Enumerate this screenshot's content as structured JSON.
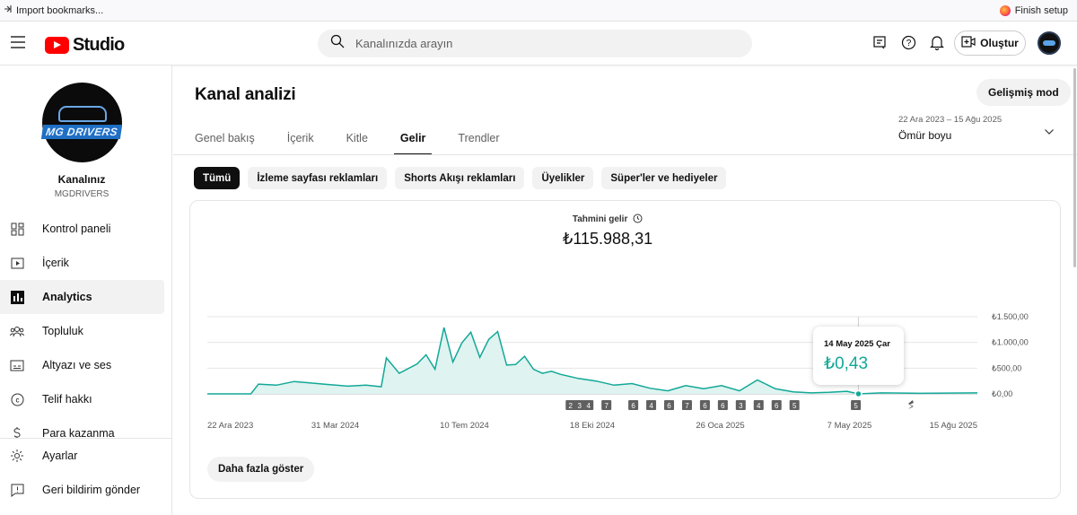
{
  "browser": {
    "import_bookmarks": "Import bookmarks...",
    "finish_setup": "Finish setup"
  },
  "topbar": {
    "logo_text": "Studio",
    "search_placeholder": "Kanalınızda arayın",
    "create_label": "Oluştur"
  },
  "sidebar": {
    "channel_title": "Kanalınız",
    "channel_handle": "MGDRIVERS",
    "avatar_text": "MG DRIVERS",
    "items": [
      {
        "label": "Kontrol paneli",
        "icon": "dashboard-icon"
      },
      {
        "label": "İçerik",
        "icon": "content-icon"
      },
      {
        "label": "Analytics",
        "icon": "analytics-icon",
        "active": true
      },
      {
        "label": "Topluluk",
        "icon": "community-icon"
      },
      {
        "label": "Altyazı ve ses",
        "icon": "subtitles-icon"
      },
      {
        "label": "Telif hakkı",
        "icon": "copyright-icon"
      },
      {
        "label": "Para kazanma",
        "icon": "monetization-icon"
      }
    ],
    "bottom_items": [
      {
        "label": "Ayarlar",
        "icon": "settings-icon"
      },
      {
        "label": "Geri bildirim gönder",
        "icon": "feedback-icon"
      }
    ]
  },
  "main": {
    "title": "Kanal analizi",
    "advanced_mode": "Gelişmiş mod",
    "tabs": [
      {
        "label": "Genel bakış"
      },
      {
        "label": "İçerik"
      },
      {
        "label": "Kitle"
      },
      {
        "label": "Gelir",
        "active": true
      },
      {
        "label": "Trendler"
      }
    ],
    "date_range": "22 Ara 2023 – 15 Ağu 2025",
    "date_period": "Ömür boyu",
    "chips": [
      {
        "label": "Tümü",
        "active": true
      },
      {
        "label": "İzleme sayfası reklamları"
      },
      {
        "label": "Shorts Akışı reklamları"
      },
      {
        "label": "Üyelikler"
      },
      {
        "label": "Süper'ler ve hediyeler"
      }
    ],
    "metric_label": "Tahmini gelir",
    "metric_value": "₺115.988,31",
    "show_more": "Daha fazla göster",
    "tooltip": {
      "date": "14 May 2025 Çar",
      "value": "₺0,43"
    }
  },
  "colors": {
    "accent": "#12a897",
    "fill": "#dff3f0",
    "youtube_red": "#ff0000"
  },
  "chart_data": {
    "type": "area",
    "title": "Tahmini gelir",
    "x_tick_labels": [
      "22 Ara 2023",
      "31 Mar 2024",
      "10 Tem 2024",
      "18 Eki 2024",
      "26 Oca 2025",
      "7 May 2025",
      "15 Ağu 2025"
    ],
    "y_tick_labels": [
      "₺0,00",
      "₺500,00",
      "₺1.000,00",
      "₺1.500,00"
    ],
    "ylim": [
      0,
      1500
    ],
    "x_start": "2023-12-22",
    "x_end": "2025-08-15",
    "series": [
      {
        "x": [
          "2023-12-22",
          "2024-01-25",
          "2024-01-31",
          "2024-02-14",
          "2024-02-28",
          "2024-03-13",
          "2024-03-27",
          "2024-04-10",
          "2024-04-24",
          "2024-05-06",
          "2024-05-10",
          "2024-05-20",
          "2024-06-03",
          "2024-06-10",
          "2024-06-17",
          "2024-06-24",
          "2024-07-01",
          "2024-07-08",
          "2024-07-15",
          "2024-07-22",
          "2024-07-29",
          "2024-08-05",
          "2024-08-12",
          "2024-08-19",
          "2024-08-26",
          "2024-09-02",
          "2024-09-09",
          "2024-09-16",
          "2024-09-23",
          "2024-10-07",
          "2024-10-21",
          "2024-11-04",
          "2024-11-18",
          "2024-12-02",
          "2024-12-16",
          "2024-12-30",
          "2025-01-13",
          "2025-01-27",
          "2025-02-10",
          "2025-02-24",
          "2025-03-10",
          "2025-03-24",
          "2025-04-07",
          "2025-04-21",
          "2025-05-05",
          "2025-05-14",
          "2025-06-01",
          "2025-07-01",
          "2025-08-15"
        ],
        "values": [
          0,
          0,
          190,
          170,
          240,
          210,
          180,
          150,
          170,
          140,
          700,
          400,
          580,
          760,
          480,
          1290,
          620,
          990,
          1200,
          710,
          1060,
          1210,
          560,
          570,
          730,
          480,
          400,
          440,
          380,
          300,
          250,
          170,
          200,
          110,
          60,
          160,
          100,
          160,
          60,
          270,
          100,
          40,
          20,
          30,
          50,
          0.43,
          20,
          10,
          20
        ]
      }
    ],
    "annotation_markers": [
      "2",
      "3",
      "4",
      "7",
      "6",
      "4",
      "6",
      "7",
      "6",
      "6",
      "3",
      "4",
      "6",
      "5",
      "5"
    ],
    "grid": true
  }
}
